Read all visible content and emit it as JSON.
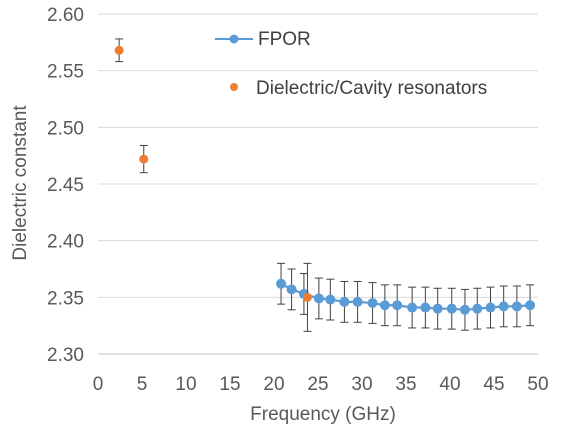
{
  "chart_data": {
    "type": "scatter",
    "xlabel": "Frequency (GHz)",
    "ylabel": "Dielectric constant",
    "xlim": [
      0,
      50
    ],
    "ylim": [
      2.3,
      2.6
    ],
    "x_ticks": [
      "0",
      "5",
      "10",
      "15",
      "20",
      "25",
      "30",
      "35",
      "40",
      "45",
      "50"
    ],
    "y_ticks": [
      "2.30",
      "2.35",
      "2.40",
      "2.45",
      "2.50",
      "2.55",
      "2.60"
    ],
    "grid": "horizontal",
    "legend_position": "top-right",
    "series": [
      {
        "name": "FPOR",
        "style": "line-markers",
        "color": "#5B9BD5",
        "x": [
          20.8,
          22.0,
          23.4,
          25.1,
          26.4,
          28.0,
          29.5,
          31.2,
          32.6,
          34.0,
          35.7,
          37.2,
          38.6,
          40.2,
          41.7,
          43.1,
          44.6,
          46.1,
          47.6,
          49.1
        ],
        "y": [
          2.362,
          2.357,
          2.353,
          2.349,
          2.348,
          2.346,
          2.346,
          2.345,
          2.343,
          2.343,
          2.341,
          2.341,
          2.34,
          2.34,
          2.339,
          2.34,
          2.341,
          2.342,
          2.342,
          2.343
        ],
        "error": [
          0.018,
          0.018,
          0.018,
          0.018,
          0.018,
          0.018,
          0.018,
          0.018,
          0.018,
          0.018,
          0.018,
          0.018,
          0.018,
          0.018,
          0.018,
          0.018,
          0.018,
          0.018,
          0.018,
          0.018
        ]
      },
      {
        "name": "Dielectric/Cavity resonators",
        "style": "markers",
        "color": "#ED7D31",
        "x": [
          2.4,
          5.2,
          23.8
        ],
        "y": [
          2.568,
          2.472,
          2.35
        ],
        "error": [
          0.01,
          0.012,
          0.03
        ]
      }
    ]
  }
}
